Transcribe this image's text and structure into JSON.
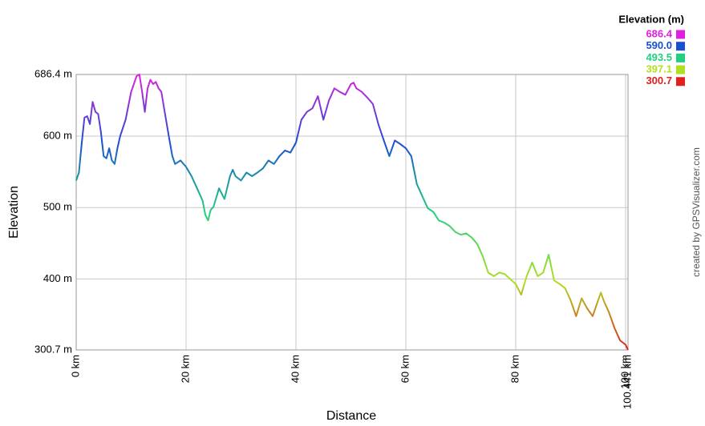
{
  "chart_data": {
    "type": "line",
    "xlabel": "Distance",
    "ylabel": "Elevation",
    "credit": "created by GPSVisualizer.com",
    "x": [
      0,
      0.5,
      1,
      1.5,
      2,
      2.5,
      3,
      3.5,
      4,
      4.5,
      5,
      5.5,
      6,
      6.5,
      7,
      7.5,
      8,
      9,
      10,
      10.5,
      11,
      11.5,
      12,
      12.5,
      13,
      13.5,
      14,
      14.5,
      15,
      15.5,
      16,
      17,
      17.5,
      18,
      19,
      20,
      21,
      22,
      23,
      23.5,
      24,
      24.5,
      25,
      26,
      27,
      28,
      28.5,
      29,
      30,
      31,
      32,
      33,
      34,
      35,
      36,
      37,
      38,
      39,
      40,
      41,
      42,
      43,
      44,
      45,
      46,
      47,
      48,
      49,
      50,
      50.5,
      51,
      52,
      53,
      54,
      55,
      56,
      57,
      58,
      59,
      60,
      61,
      62,
      63,
      64,
      65,
      66,
      67,
      68,
      69,
      70,
      71,
      72,
      73,
      74,
      75,
      76,
      77,
      78,
      79,
      80,
      81,
      82,
      83,
      84,
      85,
      86,
      87,
      88,
      89,
      90,
      91,
      92,
      93,
      94,
      95,
      95.5,
      96,
      97,
      98,
      99,
      100,
      100.441
    ],
    "series": [
      {
        "name": "Elevation",
        "values": [
          538,
          549,
          589,
          626,
          628,
          617,
          648,
          634,
          631,
          606,
          572,
          569,
          583,
          566,
          561,
          583,
          600,
          623,
          662,
          673,
          684,
          686.4,
          662,
          634,
          667,
          679,
          673,
          676,
          667,
          662,
          639,
          594,
          572,
          561,
          566,
          557,
          544,
          527,
          510,
          490,
          482,
          497,
          501,
          527,
          512,
          544,
          553,
          544,
          538,
          549,
          544,
          549,
          555,
          566,
          561,
          572,
          580,
          577,
          591,
          623,
          634,
          639,
          656,
          623,
          650,
          667,
          662,
          658,
          673,
          675,
          667,
          662,
          654,
          645,
          617,
          594,
          572,
          594,
          589,
          583,
          572,
          533,
          516,
          499,
          494,
          482,
          479,
          474,
          466,
          462,
          464,
          458,
          449,
          432,
          409,
          404,
          409,
          407,
          400,
          393,
          378,
          404,
          423,
          404,
          409,
          434,
          398,
          393,
          387,
          370,
          348,
          373,
          359,
          348,
          370,
          381,
          370,
          353,
          331,
          314,
          308,
          300.7
        ]
      }
    ],
    "xlim": [
      0,
      100.441
    ],
    "ylim": [
      300.7,
      686.4
    ],
    "xticks": [
      {
        "value": 0,
        "label": "0 km"
      },
      {
        "value": 20,
        "label": "20 km"
      },
      {
        "value": 40,
        "label": "40 km"
      },
      {
        "value": 60,
        "label": "60 km"
      },
      {
        "value": 80,
        "label": "80 km"
      },
      {
        "value": 100,
        "label": "100 km"
      },
      {
        "value": 100.441,
        "label": "100.441 km"
      }
    ],
    "yticks": [
      {
        "value": 686.4,
        "label": "686.4 m"
      },
      {
        "value": 600,
        "label": "600 m"
      },
      {
        "value": 500,
        "label": "500 m"
      },
      {
        "value": 400,
        "label": "400 m"
      },
      {
        "value": 300.7,
        "label": "300.7 m"
      }
    ],
    "grid": true,
    "legend": {
      "title": "Elevation (m)",
      "values": [
        686.4,
        590,
        493.5,
        397.1,
        300.7
      ],
      "value_labels": [
        "686.4",
        "590.0",
        "493.5",
        "397.1",
        "300.7"
      ],
      "colors": [
        "#e020e0",
        "#1a50d0",
        "#20d080",
        "#b0e020",
        "#e02020"
      ]
    }
  }
}
